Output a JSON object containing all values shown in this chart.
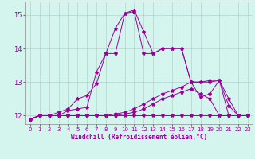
{
  "title": "",
  "xlabel": "Windchill (Refroidissement éolien,°C)",
  "ylabel": "",
  "background_color": "#d4f5ee",
  "line_color": "#990099",
  "grid_color": "#b0c8c8",
  "xlim": [
    -0.5,
    23.5
  ],
  "ylim": [
    11.75,
    15.4
  ],
  "yticks": [
    12,
    13,
    14,
    15
  ],
  "xticks": [
    0,
    1,
    2,
    3,
    4,
    5,
    6,
    7,
    8,
    9,
    10,
    11,
    12,
    13,
    14,
    15,
    16,
    17,
    18,
    19,
    20,
    21,
    22,
    23
  ],
  "lines": [
    {
      "x": [
        0,
        1,
        2,
        3,
        4,
        5,
        6,
        7,
        8,
        9,
        10,
        11,
        12,
        13,
        14,
        15,
        16,
        17,
        18,
        19,
        20,
        21,
        22,
        23
      ],
      "y": [
        11.9,
        12.0,
        12.0,
        12.0,
        12.15,
        12.2,
        12.25,
        13.3,
        13.85,
        13.85,
        15.05,
        15.15,
        14.5,
        13.85,
        14.0,
        14.0,
        14.0,
        13.0,
        13.0,
        13.05,
        13.05,
        12.0,
        12.0,
        12.0
      ]
    },
    {
      "x": [
        0,
        1,
        2,
        3,
        4,
        5,
        6,
        7,
        8,
        9,
        10,
        11,
        12,
        13,
        14,
        15,
        16,
        17,
        18,
        19,
        20,
        21,
        22,
        23
      ],
      "y": [
        11.9,
        12.0,
        12.0,
        12.1,
        12.2,
        12.5,
        12.6,
        12.95,
        13.85,
        14.6,
        15.05,
        15.1,
        13.85,
        13.85,
        14.0,
        14.0,
        14.0,
        13.0,
        12.55,
        12.65,
        13.05,
        12.5,
        12.0,
        12.0
      ]
    },
    {
      "x": [
        0,
        1,
        2,
        3,
        4,
        5,
        6,
        7,
        8,
        9,
        10,
        11,
        12,
        13,
        14,
        15,
        16,
        17,
        18,
        19,
        20,
        21,
        22,
        23
      ],
      "y": [
        11.9,
        12.0,
        12.0,
        12.0,
        12.0,
        12.0,
        12.0,
        12.0,
        12.0,
        12.05,
        12.1,
        12.2,
        12.35,
        12.5,
        12.65,
        12.75,
        12.85,
        13.0,
        13.0,
        13.0,
        13.05,
        12.3,
        12.0,
        12.0
      ]
    },
    {
      "x": [
        0,
        1,
        2,
        3,
        4,
        5,
        6,
        7,
        8,
        9,
        10,
        11,
        12,
        13,
        14,
        15,
        16,
        17,
        18,
        19,
        20,
        21,
        22,
        23
      ],
      "y": [
        11.9,
        12.0,
        12.0,
        12.0,
        12.0,
        12.0,
        12.0,
        12.0,
        12.0,
        12.0,
        12.05,
        12.1,
        12.2,
        12.35,
        12.5,
        12.6,
        12.7,
        12.8,
        12.65,
        12.5,
        12.0,
        12.0,
        12.0,
        12.0
      ]
    },
    {
      "x": [
        0,
        1,
        2,
        3,
        4,
        5,
        6,
        7,
        8,
        9,
        10,
        11,
        12,
        13,
        14,
        15,
        16,
        17,
        18,
        19,
        20,
        21,
        22,
        23
      ],
      "y": [
        11.9,
        12.0,
        12.0,
        12.0,
        12.0,
        12.0,
        12.0,
        12.0,
        12.0,
        12.0,
        12.0,
        12.0,
        12.0,
        12.0,
        12.0,
        12.0,
        12.0,
        12.0,
        12.0,
        12.0,
        12.0,
        12.0,
        12.0,
        12.0
      ]
    }
  ]
}
